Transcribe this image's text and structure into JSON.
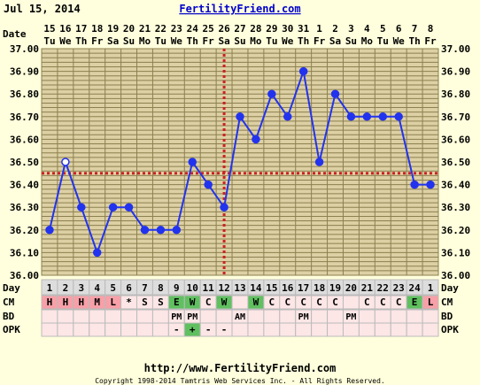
{
  "header": {
    "date": "Jul 15, 2014",
    "site": "FertilityFriend.com"
  },
  "footer": {
    "url": "http://www.FertilityFriend.com",
    "copyright": "Copyright 1998-2014 Tamtris Web Services Inc. - All Rights Reserved."
  },
  "labels": {
    "date": "Date",
    "day": "Day",
    "cm": "CM",
    "bd": "BD",
    "opk": "OPK"
  },
  "colors": {
    "background": "#ffffdd",
    "plot_background": "#ddd0a4",
    "grid": "#8c8050",
    "line": "#2233ee",
    "coverline": "#cc2222",
    "cm_pink": "#f7a0a8",
    "cm_green": "#60c060",
    "row_pink": "#fde6e6",
    "row_gray": "#dddddd",
    "row_white": "#ffffff"
  },
  "chart_data": {
    "type": "line",
    "dates": [
      "15",
      "16",
      "17",
      "18",
      "19",
      "20",
      "21",
      "22",
      "23",
      "24",
      "25",
      "26",
      "27",
      "28",
      "29",
      "30",
      "31",
      "1",
      "2",
      "3",
      "4",
      "5",
      "6",
      "7",
      "8"
    ],
    "weekdays": [
      "Tu",
      "We",
      "Th",
      "Fr",
      "Sa",
      "Su",
      "Mo",
      "Tu",
      "We",
      "Th",
      "Fr",
      "Sa",
      "Su",
      "Mo",
      "Tu",
      "We",
      "Th",
      "Fr",
      "Sa",
      "Su",
      "Mo",
      "Tu",
      "We",
      "Th",
      "Fr"
    ],
    "days": [
      "1",
      "2",
      "3",
      "4",
      "5",
      "6",
      "7",
      "8",
      "9",
      "10",
      "11",
      "12",
      "13",
      "14",
      "15",
      "16",
      "17",
      "18",
      "19",
      "20",
      "21",
      "22",
      "23",
      "24",
      "1"
    ],
    "temps": [
      36.2,
      36.5,
      36.3,
      36.1,
      36.3,
      36.3,
      36.2,
      36.2,
      36.2,
      36.5,
      36.4,
      36.3,
      36.7,
      36.6,
      36.8,
      36.7,
      36.9,
      36.5,
      36.8,
      36.7,
      36.7,
      36.7,
      36.7,
      36.4,
      36.4
    ],
    "open_markers": [
      1
    ],
    "y_ticks": [
      "37.00",
      "36.90",
      "36.80",
      "36.70",
      "36.60",
      "36.50",
      "36.40",
      "36.30",
      "36.20",
      "36.10",
      "36.00"
    ],
    "ylim": [
      36.0,
      37.0
    ],
    "coverline": 36.45,
    "ovulation_day_index": 11,
    "cm": [
      "H",
      "H",
      "H",
      "M",
      "L",
      "*",
      "S",
      "S",
      "E",
      "W",
      "C",
      "W",
      "",
      "W",
      "C",
      "C",
      "C",
      "C",
      "C",
      "",
      "C",
      "C",
      "C",
      "E",
      "L"
    ],
    "bd": [
      "",
      "",
      "",
      "",
      "",
      "",
      "",
      "",
      "PM",
      "PM",
      "",
      "",
      "AM",
      "",
      "",
      "",
      "PM",
      "",
      "",
      "PM",
      "",
      "",
      "",
      "",
      ""
    ],
    "opk": [
      "",
      "",
      "",
      "",
      "",
      "",
      "",
      "",
      "-",
      "+",
      "-",
      "-",
      "",
      "",
      "",
      "",
      "",
      "",
      "",
      "",
      "",
      "",
      "",
      "",
      ""
    ]
  }
}
